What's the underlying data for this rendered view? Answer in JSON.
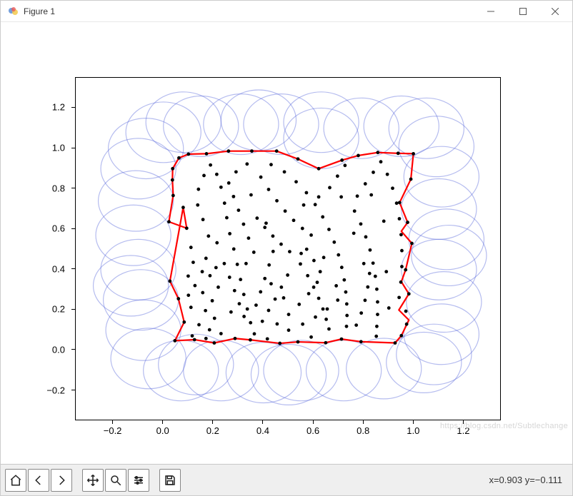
{
  "window": {
    "title": "Figure 1",
    "minimize_icon": "minimize-icon",
    "maximize_icon": "maximize-icon",
    "close_icon": "close-icon"
  },
  "chart": {
    "type": "scatter-with-hull-and-circles",
    "xlim": [
      -0.35,
      1.35
    ],
    "ylim": [
      -0.35,
      1.35
    ],
    "frame_color": "#000000",
    "background_color": "#ffffff",
    "x_ticks": [
      -0.2,
      0.0,
      0.2,
      0.4,
      0.6,
      0.8,
      1.0,
      1.2
    ],
    "y_ticks": [
      -0.2,
      0.0,
      0.2,
      0.4,
      0.6,
      0.8,
      1.0,
      1.2
    ],
    "x_tick_labels": [
      "−0.2",
      "0.0",
      "0.2",
      "0.4",
      "0.6",
      "0.8",
      "1.0",
      "1.2"
    ],
    "y_tick_labels": [
      "−0.2",
      "0.0",
      "0.2",
      "0.4",
      "0.6",
      "0.8",
      "1.0",
      "1.2"
    ],
    "tick_fontsize": 13,
    "scatter_color": "#000000",
    "scatter_size": 2.4,
    "hull_color": "#ff0000",
    "hull_linewidth": 2.2,
    "circle_color": "#5b6bdc",
    "circle_opacity": 0.45,
    "circle_linewidth": 1.2,
    "circle_radius": 0.15,
    "points": [
      [
        0.036,
        0.844
      ],
      [
        0.039,
        0.767
      ],
      [
        0.022,
        0.637
      ],
      [
        0.026,
        0.343
      ],
      [
        0.083,
        0.14
      ],
      [
        0.046,
        0.048
      ],
      [
        0.124,
        0.053
      ],
      [
        0.17,
        0.059
      ],
      [
        0.203,
        0.037
      ],
      [
        0.286,
        0.059
      ],
      [
        0.347,
        0.052
      ],
      [
        0.415,
        0.057
      ],
      [
        0.465,
        0.035
      ],
      [
        0.537,
        0.042
      ],
      [
        0.59,
        0.066
      ],
      [
        0.648,
        0.038
      ],
      [
        0.711,
        0.056
      ],
      [
        0.789,
        0.043
      ],
      [
        0.85,
        0.07
      ],
      [
        0.925,
        0.037
      ],
      [
        0.95,
        0.073
      ],
      [
        0.971,
        0.13
      ],
      [
        0.968,
        0.194
      ],
      [
        0.98,
        0.28
      ],
      [
        0.967,
        0.399
      ],
      [
        0.992,
        0.53
      ],
      [
        0.975,
        0.634
      ],
      [
        0.943,
        0.732
      ],
      [
        0.988,
        0.848
      ],
      [
        0.998,
        0.974
      ],
      [
        0.937,
        0.976
      ],
      [
        0.856,
        0.98
      ],
      [
        0.778,
        0.965
      ],
      [
        0.713,
        0.942
      ],
      [
        0.62,
        0.9
      ],
      [
        0.537,
        0.948
      ],
      [
        0.452,
        0.987
      ],
      [
        0.353,
        0.987
      ],
      [
        0.26,
        0.987
      ],
      [
        0.172,
        0.974
      ],
      [
        0.1,
        0.972
      ],
      [
        0.062,
        0.953
      ],
      [
        0.037,
        0.9
      ],
      [
        0.099,
        0.368
      ],
      [
        0.119,
        0.436
      ],
      [
        0.11,
        0.51
      ],
      [
        0.093,
        0.605
      ],
      [
        0.079,
        0.708
      ],
      [
        0.06,
        0.256
      ],
      [
        0.11,
        0.213
      ],
      [
        0.142,
        0.127
      ],
      [
        0.184,
        0.102
      ],
      [
        0.23,
        0.083
      ],
      [
        0.1,
        0.273
      ],
      [
        0.126,
        0.321
      ],
      [
        0.157,
        0.286
      ],
      [
        0.168,
        0.197
      ],
      [
        0.204,
        0.159
      ],
      [
        0.155,
        0.39
      ],
      [
        0.17,
        0.456
      ],
      [
        0.186,
        0.37
      ],
      [
        0.219,
        0.313
      ],
      [
        0.195,
        0.246
      ],
      [
        0.214,
        0.533
      ],
      [
        0.18,
        0.566
      ],
      [
        0.158,
        0.648
      ],
      [
        0.137,
        0.72
      ],
      [
        0.14,
        0.798
      ],
      [
        0.162,
        0.866
      ],
      [
        0.188,
        0.918
      ],
      [
        0.213,
        0.872
      ],
      [
        0.23,
        0.808
      ],
      [
        0.244,
        0.729
      ],
      [
        0.253,
        0.657
      ],
      [
        0.265,
        0.578
      ],
      [
        0.281,
        0.502
      ],
      [
        0.295,
        0.426
      ],
      [
        0.308,
        0.351
      ],
      [
        0.321,
        0.277
      ],
      [
        0.335,
        0.205
      ],
      [
        0.348,
        0.137
      ],
      [
        0.363,
        0.082
      ],
      [
        0.243,
        0.43
      ],
      [
        0.264,
        0.362
      ],
      [
        0.284,
        0.296
      ],
      [
        0.303,
        0.231
      ],
      [
        0.322,
        0.168
      ],
      [
        0.37,
        0.224
      ],
      [
        0.388,
        0.29
      ],
      [
        0.405,
        0.356
      ],
      [
        0.422,
        0.423
      ],
      [
        0.438,
        0.49
      ],
      [
        0.395,
        0.144
      ],
      [
        0.42,
        0.198
      ],
      [
        0.446,
        0.254
      ],
      [
        0.471,
        0.313
      ],
      [
        0.496,
        0.373
      ],
      [
        0.361,
        0.486
      ],
      [
        0.34,
        0.556
      ],
      [
        0.32,
        0.625
      ],
      [
        0.3,
        0.694
      ],
      [
        0.28,
        0.762
      ],
      [
        0.261,
        0.829
      ],
      [
        0.29,
        0.884
      ],
      [
        0.334,
        0.923
      ],
      [
        0.389,
        0.858
      ],
      [
        0.42,
        0.797
      ],
      [
        0.453,
        0.741
      ],
      [
        0.486,
        0.69
      ],
      [
        0.52,
        0.644
      ],
      [
        0.555,
        0.604
      ],
      [
        0.59,
        0.571
      ],
      [
        0.374,
        0.655
      ],
      [
        0.405,
        0.609
      ],
      [
        0.437,
        0.566
      ],
      [
        0.47,
        0.526
      ],
      [
        0.504,
        0.489
      ],
      [
        0.43,
        0.92
      ],
      [
        0.483,
        0.884
      ],
      [
        0.53,
        0.835
      ],
      [
        0.571,
        0.781
      ],
      [
        0.606,
        0.722
      ],
      [
        0.636,
        0.661
      ],
      [
        0.661,
        0.599
      ],
      [
        0.682,
        0.536
      ],
      [
        0.699,
        0.473
      ],
      [
        0.712,
        0.411
      ],
      [
        0.722,
        0.349
      ],
      [
        0.728,
        0.289
      ],
      [
        0.732,
        0.23
      ],
      [
        0.733,
        0.173
      ],
      [
        0.731,
        0.119
      ],
      [
        0.547,
        0.428
      ],
      [
        0.576,
        0.37
      ],
      [
        0.6,
        0.313
      ],
      [
        0.62,
        0.258
      ],
      [
        0.637,
        0.205
      ],
      [
        0.65,
        0.154
      ],
      [
        0.661,
        0.106
      ],
      [
        0.572,
        0.501
      ],
      [
        0.601,
        0.445
      ],
      [
        0.626,
        0.39
      ],
      [
        0.763,
        0.69
      ],
      [
        0.788,
        0.626
      ],
      [
        0.808,
        0.562
      ],
      [
        0.825,
        0.497
      ],
      [
        0.837,
        0.432
      ],
      [
        0.846,
        0.367
      ],
      [
        0.852,
        0.303
      ],
      [
        0.855,
        0.24
      ],
      [
        0.855,
        0.178
      ],
      [
        0.852,
        0.119
      ],
      [
        0.77,
        0.125
      ],
      [
        0.79,
        0.185
      ],
      [
        0.805,
        0.248
      ],
      [
        0.816,
        0.314
      ],
      [
        0.823,
        0.381
      ],
      [
        0.774,
        0.764
      ],
      [
        0.806,
        0.825
      ],
      [
        0.838,
        0.882
      ],
      [
        0.868,
        0.934
      ],
      [
        0.894,
        0.872
      ],
      [
        0.915,
        0.803
      ],
      [
        0.931,
        0.729
      ],
      [
        0.942,
        0.652
      ],
      [
        0.949,
        0.573
      ],
      [
        0.952,
        0.494
      ],
      [
        0.952,
        0.415
      ],
      [
        0.948,
        0.338
      ],
      [
        0.941,
        0.262
      ],
      [
        0.664,
        0.806
      ],
      [
        0.695,
        0.863
      ],
      [
        0.725,
        0.916
      ],
      [
        0.454,
        0.131
      ],
      [
        0.5,
        0.178
      ],
      [
        0.542,
        0.228
      ],
      [
        0.58,
        0.281
      ],
      [
        0.614,
        0.337
      ],
      [
        0.5,
        0.1
      ],
      [
        0.556,
        0.13
      ],
      [
        0.607,
        0.165
      ],
      [
        0.654,
        0.205
      ],
      [
        0.696,
        0.249
      ],
      [
        0.115,
        0.072
      ],
      [
        0.21,
        0.41
      ],
      [
        0.35,
        0.77
      ],
      [
        0.43,
        0.33
      ],
      [
        0.56,
        0.72
      ],
      [
        0.64,
        0.46
      ],
      [
        0.71,
        0.76
      ],
      [
        0.8,
        0.43
      ],
      [
        0.88,
        0.64
      ],
      [
        0.9,
        0.21
      ],
      [
        0.27,
        0.19
      ],
      [
        0.33,
        0.43
      ],
      [
        0.41,
        0.63
      ],
      [
        0.48,
        0.26
      ],
      [
        0.55,
        0.48
      ],
      [
        0.62,
        0.76
      ],
      [
        0.69,
        0.32
      ],
      [
        0.76,
        0.58
      ],
      [
        0.83,
        0.77
      ],
      [
        0.89,
        0.39
      ]
    ],
    "hull_vertices": [
      [
        0.036,
        0.844
      ],
      [
        0.039,
        0.767
      ],
      [
        0.022,
        0.637
      ],
      [
        0.093,
        0.605
      ],
      [
        0.079,
        0.708
      ],
      [
        0.026,
        0.343
      ],
      [
        0.06,
        0.256
      ],
      [
        0.083,
        0.14
      ],
      [
        0.046,
        0.048
      ],
      [
        0.124,
        0.053
      ],
      [
        0.203,
        0.037
      ],
      [
        0.286,
        0.059
      ],
      [
        0.347,
        0.052
      ],
      [
        0.465,
        0.035
      ],
      [
        0.537,
        0.042
      ],
      [
        0.648,
        0.038
      ],
      [
        0.711,
        0.056
      ],
      [
        0.789,
        0.043
      ],
      [
        0.925,
        0.037
      ],
      [
        0.95,
        0.073
      ],
      [
        0.98,
        0.15
      ],
      [
        0.94,
        0.2
      ],
      [
        0.98,
        0.28
      ],
      [
        0.95,
        0.34
      ],
      [
        0.967,
        0.399
      ],
      [
        0.992,
        0.53
      ],
      [
        0.95,
        0.59
      ],
      [
        0.975,
        0.634
      ],
      [
        0.943,
        0.732
      ],
      [
        0.988,
        0.848
      ],
      [
        0.998,
        0.974
      ],
      [
        0.937,
        0.976
      ],
      [
        0.856,
        0.98
      ],
      [
        0.778,
        0.965
      ],
      [
        0.713,
        0.942
      ],
      [
        0.62,
        0.9
      ],
      [
        0.537,
        0.948
      ],
      [
        0.452,
        0.987
      ],
      [
        0.353,
        0.987
      ],
      [
        0.26,
        0.987
      ],
      [
        0.172,
        0.974
      ],
      [
        0.1,
        0.972
      ],
      [
        0.062,
        0.953
      ],
      [
        0.037,
        0.9
      ],
      [
        0.036,
        0.844
      ]
    ],
    "boundary_circles": [
      [
        -0.1,
        0.9
      ],
      [
        -0.11,
        0.74
      ],
      [
        -0.12,
        0.57
      ],
      [
        -0.1,
        0.4
      ],
      [
        -0.09,
        0.25
      ],
      [
        -0.08,
        0.1
      ],
      [
        -0.06,
        -0.04
      ],
      [
        0.07,
        -0.1
      ],
      [
        0.23,
        -0.1
      ],
      [
        0.4,
        -0.11
      ],
      [
        0.55,
        -0.1
      ],
      [
        0.72,
        -0.1
      ],
      [
        0.88,
        -0.09
      ],
      [
        1.04,
        -0.06
      ],
      [
        1.11,
        0.08
      ],
      [
        1.12,
        0.24
      ],
      [
        1.1,
        0.4
      ],
      [
        1.13,
        0.55
      ],
      [
        1.1,
        0.7
      ],
      [
        1.11,
        0.86
      ],
      [
        1.09,
        1.01
      ],
      [
        0.95,
        1.11
      ],
      [
        0.79,
        1.1
      ],
      [
        0.63,
        1.05
      ],
      [
        0.63,
        1.13
      ],
      [
        0.47,
        1.12
      ],
      [
        0.31,
        1.12
      ],
      [
        0.15,
        1.11
      ],
      [
        0.0,
        1.08
      ],
      [
        -0.07,
        1.0
      ],
      [
        -0.13,
        0.32
      ],
      [
        0.13,
        -0.07
      ],
      [
        0.5,
        -0.12
      ],
      [
        1.08,
        -0.02
      ],
      [
        1.14,
        0.47
      ],
      [
        1.05,
        1.1
      ],
      [
        0.38,
        1.14
      ],
      [
        0.08,
        1.13
      ]
    ]
  },
  "toolbar": {
    "home_label": "home-button",
    "back_label": "back-button",
    "forward_label": "forward-button",
    "pan_label": "pan-button",
    "zoom_label": "zoom-button",
    "subplots_label": "configure-subplots-button",
    "save_label": "save-button"
  },
  "status": {
    "coord_text": "x=0.903 y=−0.111"
  },
  "watermark": "https://blog.csdn.net/Subtlechange"
}
